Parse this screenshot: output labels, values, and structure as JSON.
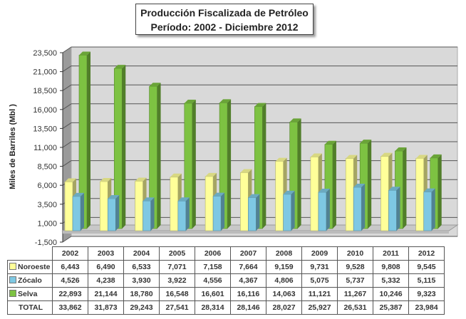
{
  "chart_data": {
    "type": "bar",
    "title": "Producción Fiscalizada de Petróleo",
    "subtitle": "Período: 2002  - Diciembre  2012",
    "ylabel": "Miles de Barriles (Mbl )",
    "xlabel": "",
    "ylim": [
      -1500,
      23500
    ],
    "yticks": [
      -1500,
      1000,
      3500,
      6000,
      8500,
      11000,
      13500,
      16000,
      18500,
      21000,
      23500
    ],
    "ytick_labels": [
      "-1,500",
      "1,000",
      "3,500",
      "6,000",
      "8,500",
      "11,000",
      "13,500",
      "16,000",
      "18,500",
      "21,000",
      "23,500"
    ],
    "grid": true,
    "categories": [
      "2002",
      "2003",
      "2004",
      "2005",
      "2006",
      "2007",
      "2008",
      "2009",
      "2010",
      "2011",
      "2012"
    ],
    "series": [
      {
        "name": "Noroeste",
        "color": "#FFFF99",
        "values": [
          6443,
          6490,
          6533,
          7071,
          7158,
          7664,
          9159,
          9731,
          9528,
          9808,
          9545
        ],
        "labels": [
          "6,443",
          "6,490",
          "6,533",
          "7,071",
          "7,158",
          "7,664",
          "9,159",
          "9,731",
          "9,528",
          "9,808",
          "9,545"
        ]
      },
      {
        "name": "Zócalo",
        "color": "#7EC8E3",
        "values": [
          4526,
          4238,
          3930,
          3922,
          4556,
          4367,
          4806,
          5075,
          5737,
          5332,
          5115
        ],
        "labels": [
          "4,526",
          "4,238",
          "3,930",
          "3,922",
          "4,556",
          "4,367",
          "4,806",
          "5,075",
          "5,737",
          "5,332",
          "5,115"
        ]
      },
      {
        "name": "Selva",
        "color": "#7DC242",
        "values": [
          22893,
          21144,
          18780,
          16548,
          16601,
          16116,
          14063,
          11121,
          11267,
          10246,
          9323
        ],
        "labels": [
          "22,893",
          "21,144",
          "18,780",
          "16,548",
          "16,601",
          "16,116",
          "14,063",
          "11,121",
          "11,267",
          "10,246",
          "9,323"
        ]
      }
    ],
    "total": {
      "name": "TOTAL",
      "values": [
        33862,
        31873,
        29243,
        27541,
        28314,
        28146,
        28027,
        25927,
        26531,
        25387,
        23984
      ],
      "labels": [
        "33,862",
        "31,873",
        "29,243",
        "27,541",
        "28,314",
        "28,146",
        "28,027",
        "25,927",
        "26,531",
        "25,387",
        "23,984"
      ]
    },
    "legend": "data-table"
  }
}
